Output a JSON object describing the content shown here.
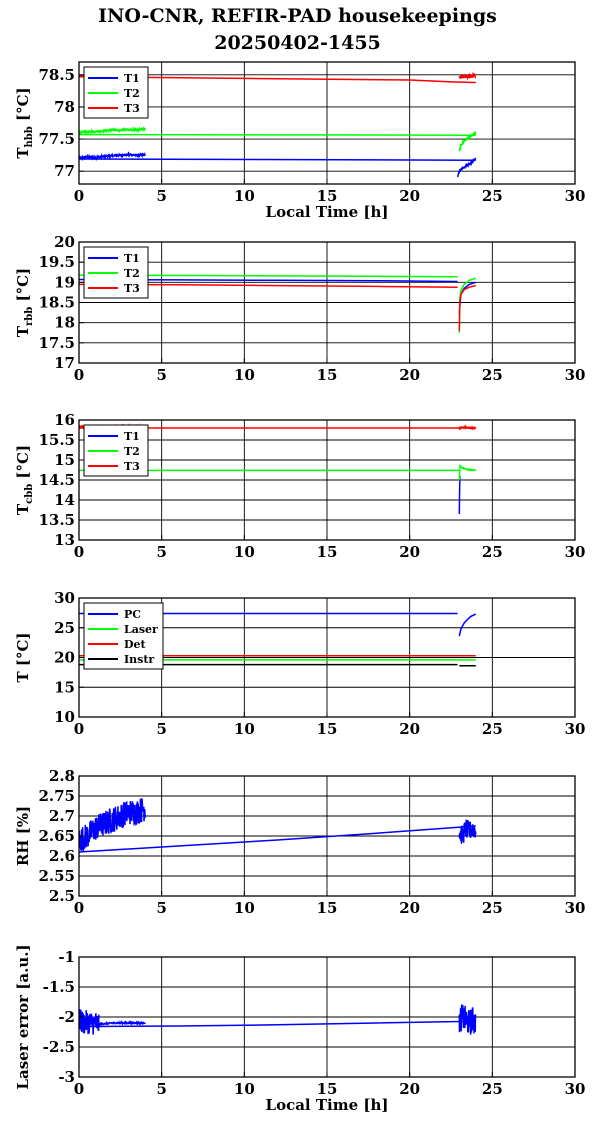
{
  "header": {
    "title_line1": "INO-CNR, REFIR-PAD housekeepings",
    "title_line2": "20250402-1455"
  },
  "colors": {
    "blue": "#0000ff",
    "green": "#00ff00",
    "red": "#ff0000",
    "black": "#000000"
  },
  "chart_data": [
    {
      "type": "line",
      "ylabel": "T_hbb [°C]",
      "ylabel_main": "T",
      "ylabel_sub": "hbb",
      "ylabel_unit": "[°C]",
      "xlabel": "Local Time [h]",
      "xlim": [
        0,
        30
      ],
      "xticks": [
        0,
        5,
        10,
        15,
        20,
        25,
        30
      ],
      "ylim": [
        76.8,
        78.7
      ],
      "yticks": [
        77,
        77.5,
        78,
        78.5
      ],
      "ytick_labels": [
        "77",
        "77.5",
        "78",
        "78.5"
      ],
      "legend": "top-left",
      "grid": true,
      "series": [
        {
          "name": "T1",
          "color": "#0000ff",
          "noise": 0.03,
          "segments": [
            {
              "x": [
                0,
                0.5,
                1,
                1.5,
                2,
                2.5,
                3,
                3.5,
                4
              ],
              "y": [
                77.2,
                77.22,
                77.21,
                77.23,
                77.24,
                77.25,
                77.26,
                77.25,
                77.25
              ]
            },
            {
              "x": [
                0,
                24
              ],
              "y": [
                77.19,
                77.17
              ],
              "noise": 0
            },
            {
              "x": [
                22.9,
                23.0,
                23.2,
                23.4,
                23.6,
                23.8,
                24.0
              ],
              "y": [
                76.9,
                77.0,
                77.05,
                77.08,
                77.11,
                77.14,
                77.2
              ]
            }
          ]
        },
        {
          "name": "T2",
          "color": "#00ff00",
          "noise": 0.03,
          "segments": [
            {
              "x": [
                0,
                0.5,
                1,
                1.5,
                2,
                2.5,
                3,
                3.5,
                4
              ],
              "y": [
                77.6,
                77.61,
                77.62,
                77.63,
                77.64,
                77.64,
                77.65,
                77.64,
                77.66
              ]
            },
            {
              "x": [
                0,
                24
              ],
              "y": [
                77.57,
                77.56
              ],
              "noise": 0
            },
            {
              "x": [
                23.0,
                23.1,
                23.3,
                23.5,
                23.7,
                23.9,
                24.0
              ],
              "y": [
                77.3,
                77.4,
                77.47,
                77.51,
                77.54,
                77.58,
                77.6
              ]
            }
          ]
        },
        {
          "name": "T3",
          "color": "#ff0000",
          "noise": 0,
          "segments": [
            {
              "x": [
                0,
                0.5,
                1,
                2,
                3,
                4
              ],
              "y": [
                78.48,
                78.48,
                78.48,
                78.48,
                78.49,
                78.49
              ]
            },
            {
              "x": [
                0,
                4,
                12,
                20,
                22.5,
                24
              ],
              "y": [
                78.47,
                78.46,
                78.44,
                78.42,
                78.39,
                78.38
              ]
            },
            {
              "x": [
                23.0,
                23.2,
                23.4,
                23.6,
                23.8,
                24.0
              ],
              "y": [
                78.45,
                78.47,
                78.48,
                78.47,
                78.48,
                78.48
              ],
              "noise": 0.06
            }
          ]
        }
      ]
    },
    {
      "type": "line",
      "ylabel": "T_rbb [°C]",
      "ylabel_main": "T",
      "ylabel_sub": "rbb",
      "ylabel_unit": "[°C]",
      "xlabel": "",
      "xlim": [
        0,
        30
      ],
      "xticks": [
        0,
        5,
        10,
        15,
        20,
        25,
        30
      ],
      "ylim": [
        17,
        20
      ],
      "yticks": [
        17,
        17.5,
        18,
        18.5,
        19,
        19.5,
        20
      ],
      "ytick_labels": [
        "17",
        "17.5",
        "18",
        "18.5",
        "19",
        "19.5",
        "20"
      ],
      "legend": "top-left",
      "grid": true,
      "series": [
        {
          "name": "T1",
          "color": "#0000ff",
          "noise": 0,
          "segments": [
            {
              "x": [
                0,
                6,
                12,
                18,
                22.9
              ],
              "y": [
                19.07,
                19.06,
                19.05,
                19.04,
                19.02
              ]
            },
            {
              "x": [
                23.0,
                23.05,
                23.1,
                23.3,
                23.6,
                24.0
              ],
              "y": [
                18.2,
                18.5,
                18.7,
                18.85,
                18.95,
                19.0
              ]
            }
          ]
        },
        {
          "name": "T2",
          "color": "#00ff00",
          "noise": 0,
          "segments": [
            {
              "x": [
                0,
                6,
                12,
                18,
                22.9
              ],
              "y": [
                19.18,
                19.17,
                19.16,
                19.15,
                19.14
              ]
            },
            {
              "x": [
                23.0,
                23.03,
                23.1,
                23.3,
                23.6,
                24.0
              ],
              "y": [
                17.75,
                18.6,
                18.8,
                18.95,
                19.05,
                19.1
              ]
            }
          ]
        },
        {
          "name": "T3",
          "color": "#ff0000",
          "noise": 0,
          "segments": [
            {
              "x": [
                0,
                6,
                12,
                18,
                22.9
              ],
              "y": [
                18.95,
                18.94,
                18.92,
                18.9,
                18.88
              ]
            },
            {
              "x": [
                23.0,
                23.03,
                23.1,
                23.3,
                23.6,
                24.0
              ],
              "y": [
                17.8,
                18.5,
                18.7,
                18.82,
                18.88,
                18.92
              ]
            }
          ]
        }
      ]
    },
    {
      "type": "line",
      "ylabel": "T_cbb [°C]",
      "ylabel_main": "T",
      "ylabel_sub": "cbb",
      "ylabel_unit": "[°C]",
      "xlabel": "",
      "xlim": [
        0,
        30
      ],
      "xticks": [
        0,
        5,
        10,
        15,
        20,
        25,
        30
      ],
      "ylim": [
        13,
        16
      ],
      "yticks": [
        13,
        13.5,
        14,
        14.5,
        15,
        15.5,
        16
      ],
      "ytick_labels": [
        "13",
        "13.5",
        "14",
        "14.5",
        "15",
        "15.5",
        "16"
      ],
      "legend": "top-left",
      "grid": true,
      "series": [
        {
          "name": "T1",
          "color": "#0000ff",
          "noise": 0,
          "segments": [
            {
              "x": [
                23.0,
                23.02,
                23.04
              ],
              "y": [
                13.65,
                14.2,
                14.6
              ]
            }
          ]
        },
        {
          "name": "T2",
          "color": "#00ff00",
          "noise": 0,
          "segments": [
            {
              "x": [
                0,
                6,
                12,
                18,
                23
              ],
              "y": [
                14.74,
                14.74,
                14.74,
                14.74,
                14.74
              ]
            },
            {
              "x": [
                23.0,
                23.05,
                23.2,
                23.5,
                24.0
              ],
              "y": [
                14.5,
                14.85,
                14.8,
                14.76,
                14.75
              ],
              "noise": 0.02
            }
          ]
        },
        {
          "name": "T3",
          "color": "#ff0000",
          "noise": 0,
          "segments": [
            {
              "x": [
                0,
                1,
                2,
                3,
                4
              ],
              "y": [
                15.83,
                15.84,
                15.85,
                15.86,
                15.86
              ],
              "noise": 0.02
            },
            {
              "x": [
                0,
                6,
                12,
                18,
                24
              ],
              "y": [
                15.8,
                15.8,
                15.8,
                15.8,
                15.8
              ]
            },
            {
              "x": [
                23.0,
                23.3,
                23.6,
                24.0
              ],
              "y": [
                15.8,
                15.82,
                15.8,
                15.8
              ],
              "noise": 0.03
            }
          ]
        }
      ]
    },
    {
      "type": "line",
      "ylabel": "T [°C]",
      "ylabel_main": "T",
      "ylabel_sub": "",
      "ylabel_unit": "[°C]",
      "xlabel": "",
      "xlim": [
        0,
        30
      ],
      "xticks": [
        0,
        5,
        10,
        15,
        20,
        25,
        30
      ],
      "ylim": [
        10,
        30
      ],
      "yticks": [
        10,
        15,
        20,
        25,
        30
      ],
      "ytick_labels": [
        "10",
        "15",
        "20",
        "25",
        "30"
      ],
      "legend": "top-left",
      "grid": true,
      "series": [
        {
          "name": "PC",
          "color": "#0000ff",
          "noise": 0,
          "segments": [
            {
              "x": [
                0,
                6,
                12,
                18,
                22.9
              ],
              "y": [
                27.4,
                27.4,
                27.4,
                27.4,
                27.4
              ]
            },
            {
              "x": [
                23.0,
                23.1,
                23.3,
                23.5,
                23.7,
                24.0
              ],
              "y": [
                23.6,
                24.8,
                25.8,
                26.4,
                26.9,
                27.3
              ]
            }
          ]
        },
        {
          "name": "Laser",
          "color": "#00ff00",
          "noise": 0,
          "segments": [
            {
              "x": [
                0,
                12,
                24
              ],
              "y": [
                19.6,
                19.6,
                19.6
              ]
            }
          ]
        },
        {
          "name": "Det",
          "color": "#ff0000",
          "noise": 0,
          "segments": [
            {
              "x": [
                0,
                12,
                24
              ],
              "y": [
                20.3,
                20.3,
                20.3
              ]
            }
          ]
        },
        {
          "name": "Instr",
          "color": "#000000",
          "noise": 0,
          "segments": [
            {
              "x": [
                0,
                12,
                22.9
              ],
              "y": [
                18.8,
                18.8,
                18.8
              ]
            },
            {
              "x": [
                23.0,
                24.0
              ],
              "y": [
                18.6,
                18.6
              ]
            }
          ]
        }
      ]
    },
    {
      "type": "line",
      "ylabel": "RH [%]",
      "ylabel_main": "RH [%]",
      "ylabel_sub": "",
      "ylabel_unit": "",
      "xlabel": "",
      "xlim": [
        0,
        30
      ],
      "xticks": [
        0,
        5,
        10,
        15,
        20,
        25,
        30
      ],
      "ylim": [
        2.5,
        2.8
      ],
      "yticks": [
        2.5,
        2.55,
        2.6,
        2.65,
        2.7,
        2.75,
        2.8
      ],
      "ytick_labels": [
        "2.5",
        "2.55",
        "2.6",
        "2.65",
        "2.7",
        "2.75",
        "2.8"
      ],
      "legend": "none",
      "grid": true,
      "series": [
        {
          "name": "",
          "color": "#0000ff",
          "noise": 0,
          "segments": [
            {
              "x": [
                0,
                0.5,
                1,
                1.5,
                2,
                2.5,
                3,
                3.5,
                4
              ],
              "y": [
                2.64,
                2.65,
                2.67,
                2.68,
                2.69,
                2.7,
                2.71,
                2.71,
                2.72
              ],
              "noise": 0.065
            },
            {
              "x": [
                0,
                6,
                12,
                18,
                24
              ],
              "y": [
                2.61,
                2.625,
                2.64,
                2.657,
                2.675
              ]
            },
            {
              "x": [
                23.0,
                23.2,
                23.4,
                23.6,
                23.8,
                24.0
              ],
              "y": [
                2.66,
                2.65,
                2.67,
                2.66,
                2.67,
                2.665
              ],
              "noise": 0.05
            }
          ]
        }
      ]
    },
    {
      "type": "line",
      "ylabel": "Laser error [a.u.]",
      "ylabel_main": "Laser error [a.u.]",
      "ylabel_sub": "",
      "ylabel_unit": "",
      "xlabel": "Local Time [h]",
      "xlim": [
        0,
        30
      ],
      "xticks": [
        0,
        5,
        10,
        15,
        20,
        25,
        30
      ],
      "ylim": [
        -3,
        -1
      ],
      "yticks": [
        -3,
        -2.5,
        -2,
        -1.5,
        -1
      ],
      "ytick_labels": [
        "-3",
        "-2.5",
        "-2",
        "-1.5",
        "-1"
      ],
      "legend": "none",
      "grid": true,
      "series": [
        {
          "name": "",
          "color": "#0000ff",
          "noise": 0,
          "segments": [
            {
              "x": [
                0,
                0.25,
                0.5,
                0.75,
                1.0,
                1.2
              ],
              "y": [
                -2.05,
                -2.1,
                -2.08,
                -2.1,
                -2.1,
                -2.12
              ],
              "noise": 0.4
            },
            {
              "x": [
                1.2,
                2,
                3,
                4
              ],
              "y": [
                -2.12,
                -2.1,
                -2.1,
                -2.1
              ],
              "noise": 0.02
            },
            {
              "x": [
                0,
                6,
                12,
                18,
                24
              ],
              "y": [
                -2.16,
                -2.15,
                -2.13,
                -2.1,
                -2.07
              ]
            },
            {
              "x": [
                23.0,
                23.2,
                23.4,
                23.6,
                23.8,
                24.0
              ],
              "y": [
                -2.05,
                -2.0,
                -2.05,
                -2.1,
                -2.05,
                -2.1
              ],
              "noise": 0.45
            }
          ]
        }
      ]
    }
  ]
}
